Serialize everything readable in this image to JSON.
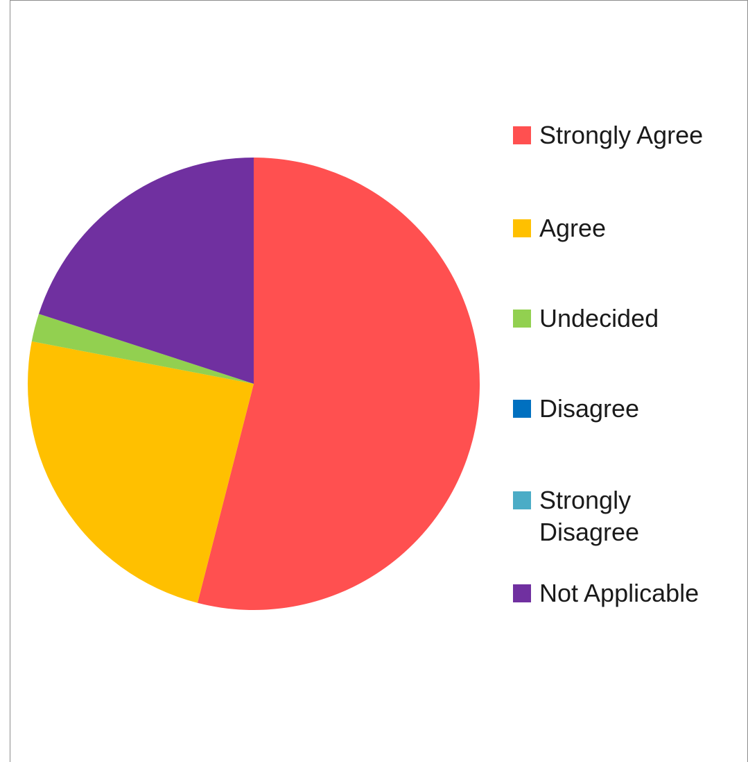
{
  "chart_data": {
    "type": "pie",
    "title": "",
    "categories": [
      "Strongly Agree",
      "Agree",
      "Undecided",
      "Disagree",
      "Strongly Disagree",
      "Not Applicable"
    ],
    "values": [
      54,
      24,
      2,
      0,
      0,
      20
    ],
    "colors": [
      "#ff5050",
      "#ffc000",
      "#92d050",
      "#0070c0",
      "#4bacc6",
      "#7030a0"
    ],
    "legend_position": "right",
    "start_angle": "12 o'clock",
    "direction": "clockwise"
  },
  "legend": {
    "items": [
      {
        "label": "Strongly Agree",
        "color": "#ff5050"
      },
      {
        "label": "Agree",
        "color": "#ffc000"
      },
      {
        "label": "Undecided",
        "color": "#92d050"
      },
      {
        "label": "Disagree",
        "color": "#0070c0"
      },
      {
        "label": "Strongly Disagree",
        "color": "#4bacc6"
      },
      {
        "label": "Not Applicable",
        "color": "#7030a0"
      }
    ]
  }
}
